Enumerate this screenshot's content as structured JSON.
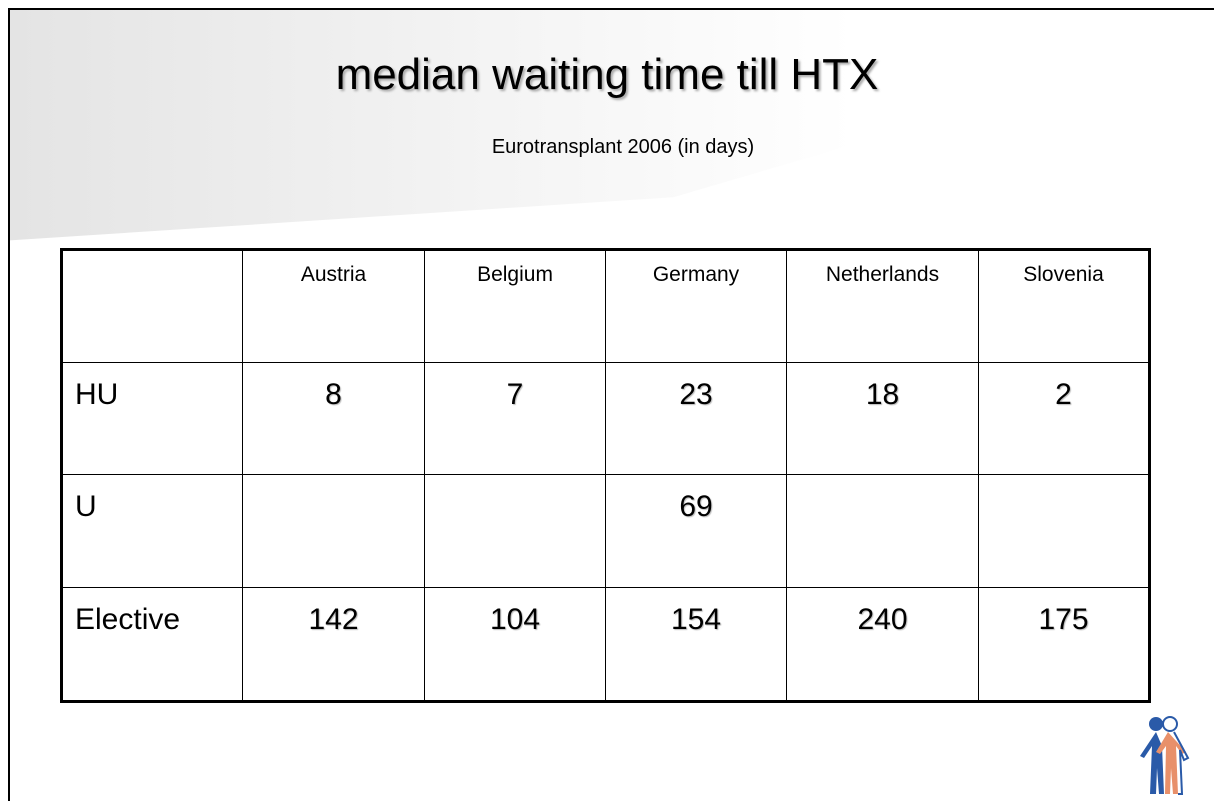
{
  "title": "median waiting time till HTX",
  "subtitle": "Eurotransplant 2006 (in days)",
  "table": {
    "columns": [
      "Austria",
      "Belgium",
      "Germany",
      "Netherlands",
      "Slovenia"
    ],
    "rows": [
      [
        "HU",
        8,
        7,
        23,
        18,
        2
      ],
      [
        "U",
        null,
        null,
        69,
        null,
        null
      ],
      [
        "Elective",
        142,
        104,
        154,
        240,
        175
      ]
    ]
  }
}
